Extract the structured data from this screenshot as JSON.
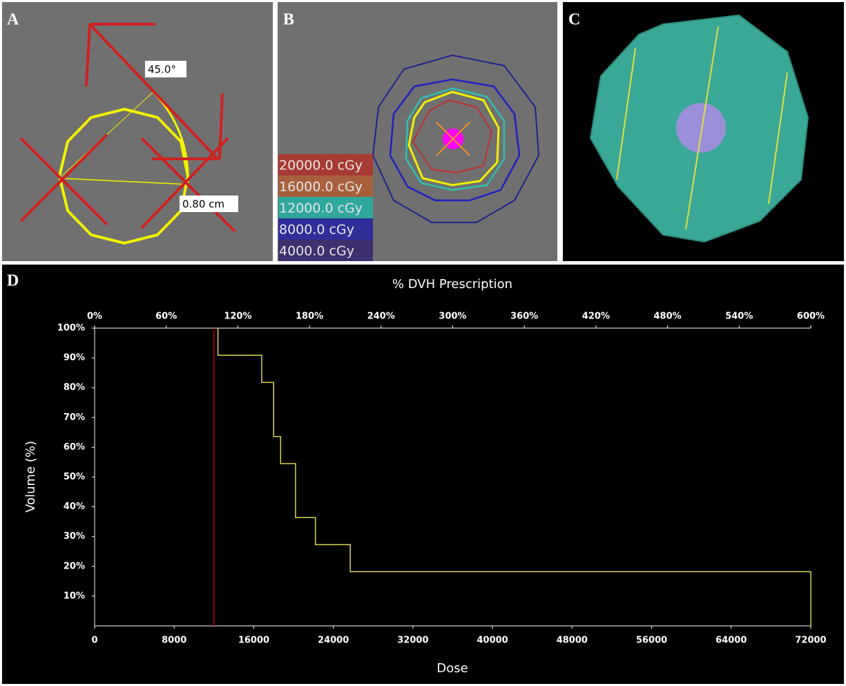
{
  "panel_a": {
    "letter": "A",
    "angle": "45.0°",
    "distance": "0.80 cm"
  },
  "panel_b": {
    "letter": "B",
    "legend": [
      {
        "label": "20000.0 cGy",
        "color": "#a83a34"
      },
      {
        "label": "16000.0 cGy",
        "color": "#a8603c"
      },
      {
        "label": "12000.0 cGy",
        "color": "#2fa89c"
      },
      {
        "label": "8000.0 cGy",
        "color": "#2e2e9a"
      },
      {
        "label": "4000.0 cGy",
        "color": "#3e2f6e"
      }
    ]
  },
  "panel_c": {
    "letter": "C"
  },
  "panel_d": {
    "letter": "D"
  },
  "chart_data": {
    "type": "line",
    "step": true,
    "x2label": "% DVH Prescription",
    "xlabel": "Dose",
    "ylabel": "Volume (%)",
    "xlim": [
      0,
      72000
    ],
    "xticks": [
      0,
      8000,
      16000,
      24000,
      32000,
      40000,
      48000,
      56000,
      64000,
      72000
    ],
    "x2lim": [
      0,
      600
    ],
    "x2ticks": [
      {
        "value": 0,
        "label": "0%"
      },
      {
        "value": 60,
        "label": "60%"
      },
      {
        "value": 120,
        "label": "120%"
      },
      {
        "value": 180,
        "label": "180%"
      },
      {
        "value": 240,
        "label": "240%"
      },
      {
        "value": 300,
        "label": "300%"
      },
      {
        "value": 360,
        "label": "360%"
      },
      {
        "value": 420,
        "label": "420%"
      },
      {
        "value": 480,
        "label": "480%"
      },
      {
        "value": 540,
        "label": "540%"
      },
      {
        "value": 600,
        "label": "600%"
      }
    ],
    "ylim": [
      0,
      100
    ],
    "yticks": [
      {
        "value": 10,
        "label": "10%"
      },
      {
        "value": 20,
        "label": "20%"
      },
      {
        "value": 30,
        "label": "30%"
      },
      {
        "value": 40,
        "label": "40%"
      },
      {
        "value": 50,
        "label": "50%"
      },
      {
        "value": 60,
        "label": "60%"
      },
      {
        "value": 70,
        "label": "70%"
      },
      {
        "value": 80,
        "label": "80%"
      },
      {
        "value": 90,
        "label": "90%"
      },
      {
        "value": 100,
        "label": "100%"
      }
    ],
    "grid": false,
    "series": [
      {
        "color": "#d8d850",
        "x": [
          12400,
          16800,
          18000,
          18700,
          20200,
          22200,
          25700,
          72000
        ],
        "values": [
          100,
          90.9,
          81.8,
          63.6,
          54.5,
          36.4,
          27.3,
          18.2
        ]
      },
      {
        "color": "#c00000",
        "x": [
          12000,
          12000
        ],
        "values": [
          0,
          100
        ]
      }
    ]
  }
}
